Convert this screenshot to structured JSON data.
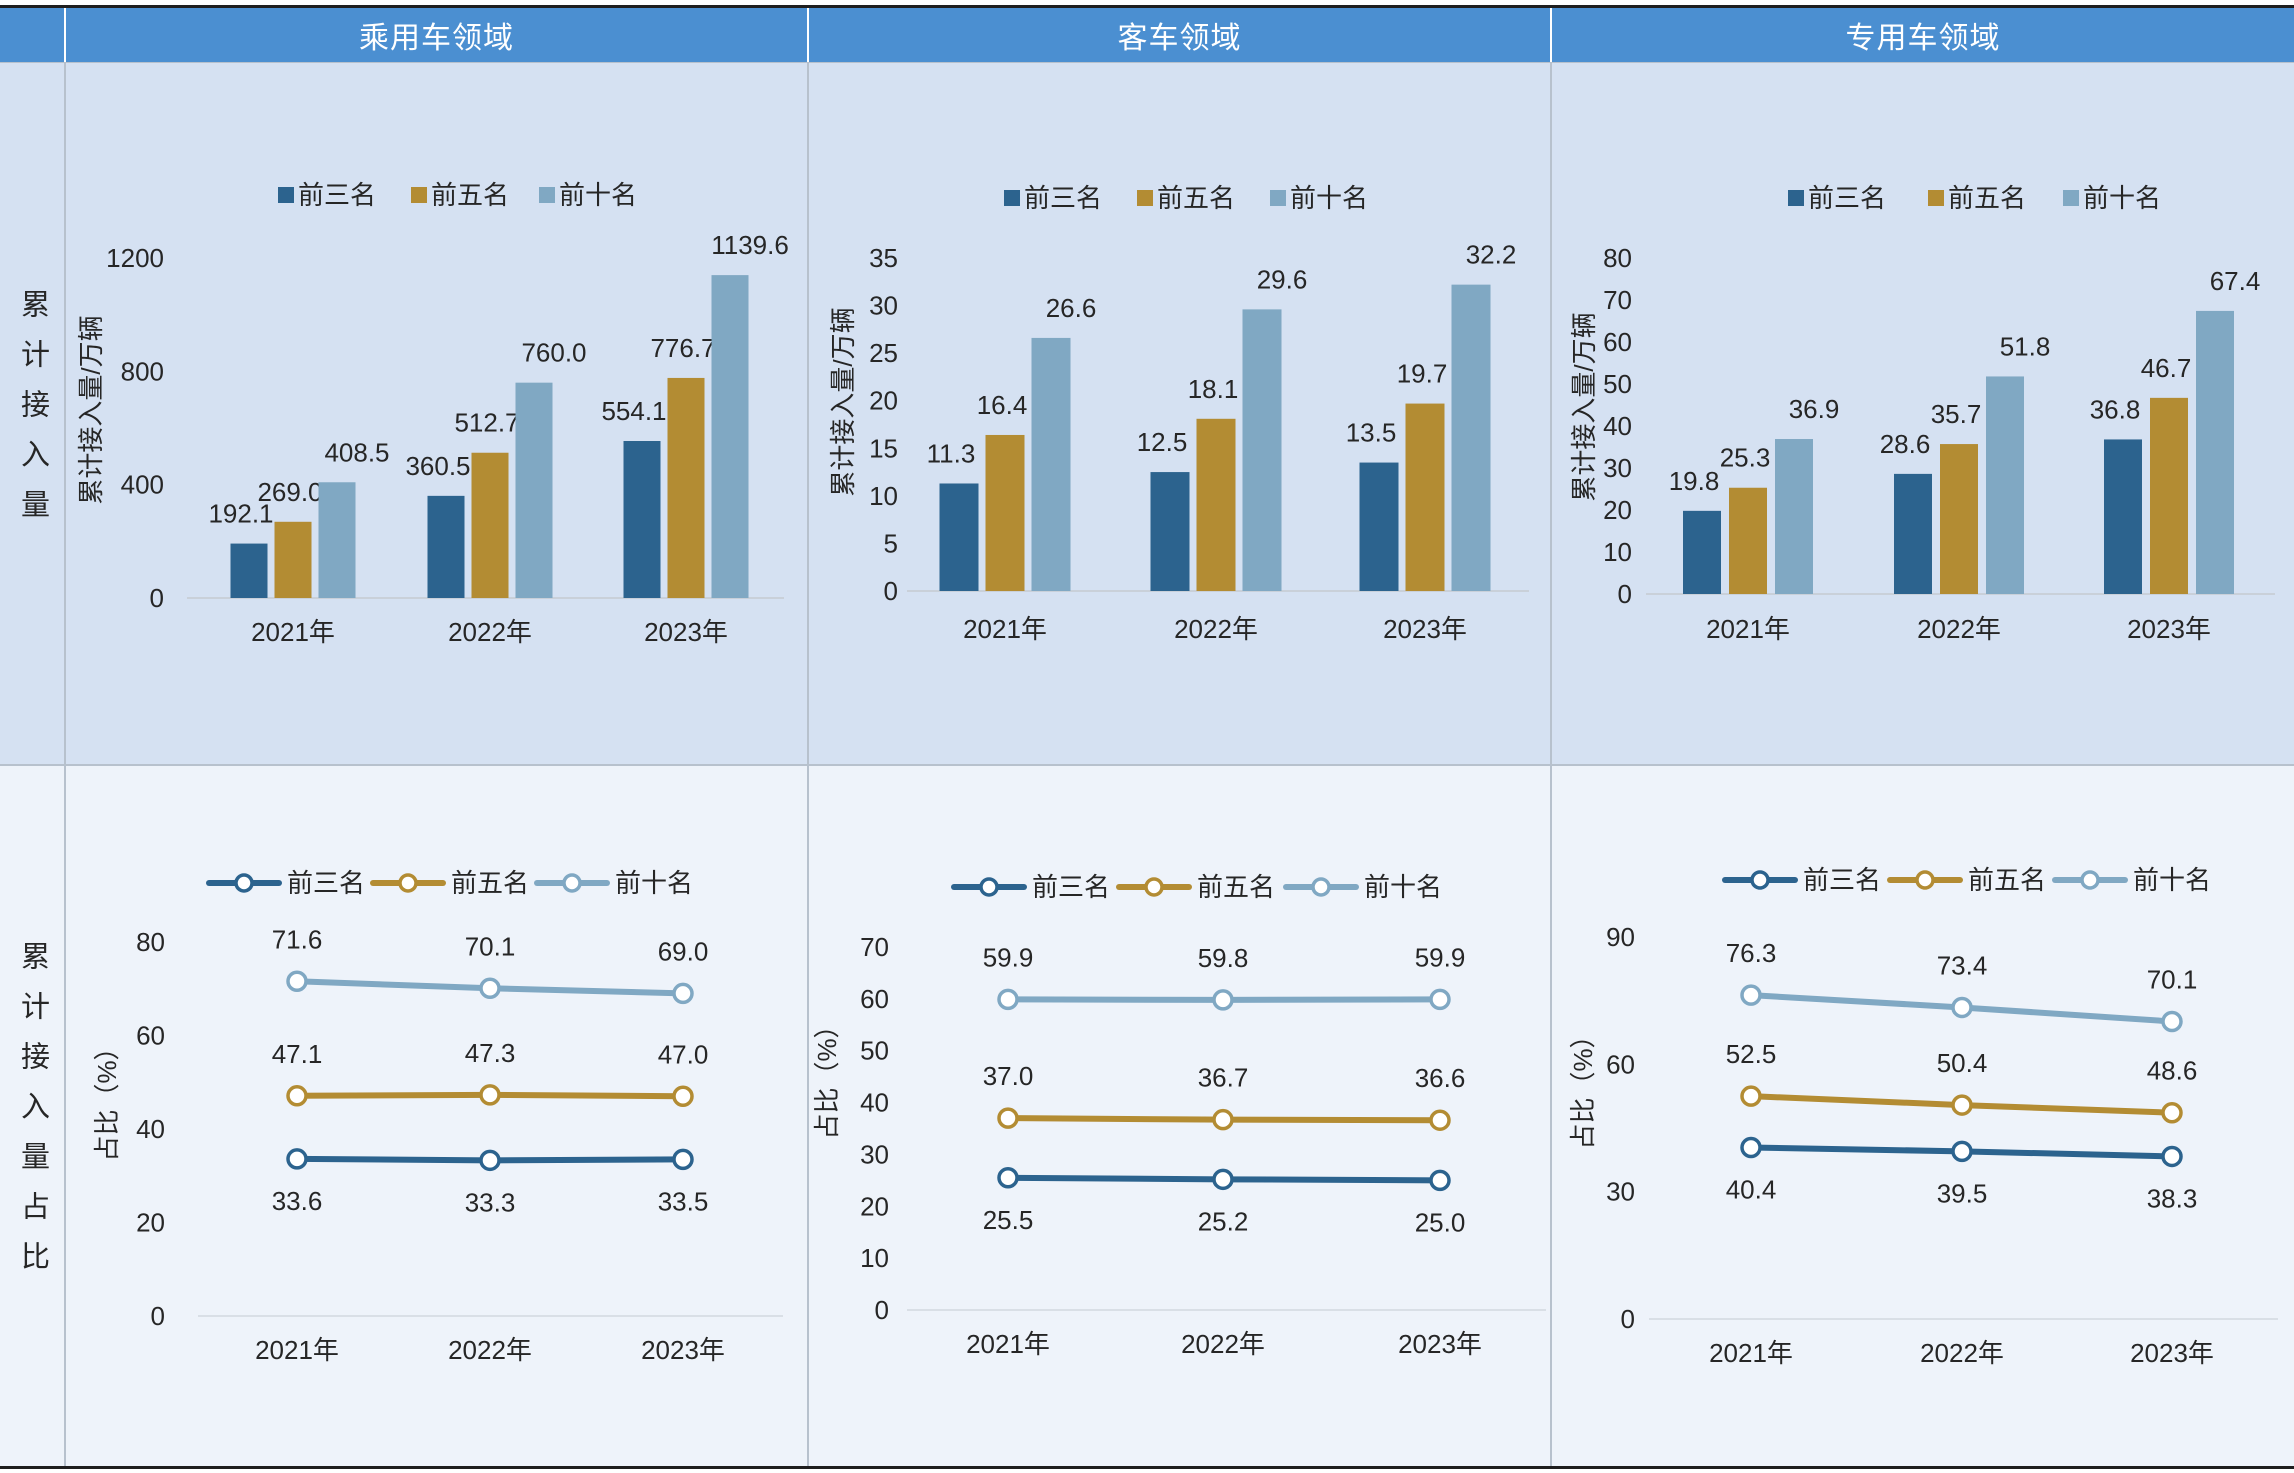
{
  "theme": {
    "header_bg": "#4b8fd1",
    "header_text": "#ffffff",
    "row1_bg": "#d5e1f2",
    "row2_bg": "#eef3fa"
  },
  "header": {
    "columns": [
      "乘用车领域",
      "客车领域",
      "专用车领域"
    ]
  },
  "row_labels": [
    "累计接入量",
    "累计接入量占比"
  ],
  "chart_data": [
    {
      "type": "bar",
      "categories": [
        "2021年",
        "2022年",
        "2023年"
      ],
      "series": [
        {
          "name": "前三名",
          "color": "#2c638e",
          "values": [
            192.1,
            360.5,
            554.1
          ]
        },
        {
          "name": "前五名",
          "color": "#b38c33",
          "values": [
            269.0,
            512.7,
            776.7
          ]
        },
        {
          "name": "前十名",
          "color": "#80a8c3",
          "values": [
            408.5,
            760.0,
            1139.6
          ]
        }
      ],
      "ylabel": "累计接入量/万辆",
      "ylim": [
        0,
        1200
      ],
      "yticks": [
        0,
        400,
        800,
        1200
      ],
      "legend": "top",
      "grid": false
    },
    {
      "type": "bar",
      "categories": [
        "2021年",
        "2022年",
        "2023年"
      ],
      "series": [
        {
          "name": "前三名",
          "color": "#2c638e",
          "values": [
            11.3,
            12.5,
            13.5
          ]
        },
        {
          "name": "前五名",
          "color": "#b38c33",
          "values": [
            16.4,
            18.1,
            19.7
          ]
        },
        {
          "name": "前十名",
          "color": "#80a8c3",
          "values": [
            26.6,
            29.6,
            32.2
          ]
        }
      ],
      "ylabel": "累计接入量/万辆",
      "ylim": [
        0,
        35
      ],
      "yticks": [
        0,
        5,
        10,
        15,
        20,
        25,
        30,
        35
      ],
      "legend": "top",
      "grid": false
    },
    {
      "type": "bar",
      "categories": [
        "2021年",
        "2022年",
        "2023年"
      ],
      "series": [
        {
          "name": "前三名",
          "color": "#2c638e",
          "values": [
            19.8,
            28.6,
            36.8
          ]
        },
        {
          "name": "前五名",
          "color": "#b38c33",
          "values": [
            25.3,
            35.7,
            46.7
          ]
        },
        {
          "name": "前十名",
          "color": "#80a8c3",
          "values": [
            36.9,
            51.8,
            67.4
          ]
        }
      ],
      "ylabel": "累计接入量/万辆",
      "ylim": [
        0,
        80
      ],
      "yticks": [
        0,
        10,
        20,
        30,
        40,
        50,
        60,
        70,
        80
      ],
      "legend": "top",
      "grid": false
    },
    {
      "type": "line",
      "categories": [
        "2021年",
        "2022年",
        "2023年"
      ],
      "series": [
        {
          "name": "前三名",
          "color": "#2c638e",
          "values": [
            33.6,
            33.3,
            33.5
          ]
        },
        {
          "name": "前五名",
          "color": "#b38c33",
          "values": [
            47.1,
            47.3,
            47.0
          ]
        },
        {
          "name": "前十名",
          "color": "#80a8c3",
          "values": [
            71.6,
            70.1,
            69.0
          ]
        }
      ],
      "ylabel": "占比（%）",
      "ylim": [
        0,
        80
      ],
      "yticks": [
        0,
        20,
        40,
        60,
        80
      ],
      "legend": "top",
      "grid": false
    },
    {
      "type": "line",
      "categories": [
        "2021年",
        "2022年",
        "2023年"
      ],
      "series": [
        {
          "name": "前三名",
          "color": "#2c638e",
          "values": [
            25.5,
            25.2,
            25.0
          ]
        },
        {
          "name": "前五名",
          "color": "#b38c33",
          "values": [
            37.0,
            36.7,
            36.6
          ]
        },
        {
          "name": "前十名",
          "color": "#80a8c3",
          "values": [
            59.9,
            59.8,
            59.9
          ]
        }
      ],
      "ylabel": "占比（%）",
      "ylim": [
        0,
        70
      ],
      "yticks": [
        0,
        10,
        20,
        30,
        40,
        50,
        60,
        70
      ],
      "legend": "top",
      "grid": false
    },
    {
      "type": "line",
      "categories": [
        "2021年",
        "2022年",
        "2023年"
      ],
      "series": [
        {
          "name": "前三名",
          "color": "#2c638e",
          "values": [
            40.4,
            39.5,
            38.3
          ]
        },
        {
          "name": "前五名",
          "color": "#b38c33",
          "values": [
            52.5,
            50.4,
            48.6
          ]
        },
        {
          "name": "前十名",
          "color": "#80a8c3",
          "values": [
            76.3,
            73.4,
            70.1
          ]
        }
      ],
      "ylabel": "占比（%）",
      "ylim": [
        0,
        90
      ],
      "yticks": [
        0,
        30,
        60,
        90
      ],
      "legend": "top",
      "grid": false
    }
  ]
}
